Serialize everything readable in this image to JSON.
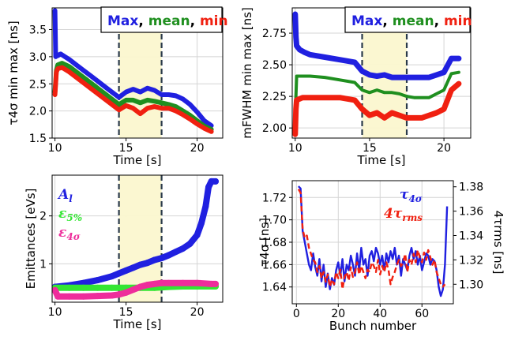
{
  "chart_data": [
    {
      "type": "line",
      "title": "",
      "xlabel": "Time [s]",
      "ylabel": "τ4σ min max [ns]",
      "xlim": [
        9.8,
        21.8
      ],
      "ylim": [
        1.5,
        3.9
      ],
      "xticks": [
        10,
        15,
        20
      ],
      "yticks": [
        1.5,
        2.0,
        2.5,
        3.0,
        3.5
      ],
      "ytick_labels": [
        "1.5",
        "2.0",
        "2.5",
        "3.0",
        "3.5"
      ],
      "grid": true,
      "legend_position": "top-right",
      "legend": [
        {
          "text": "Max",
          "color": "#2020e0"
        },
        {
          "text": ", ",
          "color": "#000000"
        },
        {
          "text": "mean",
          "color": "#1f8f1f"
        },
        {
          "text": ", ",
          "color": "#000000"
        },
        {
          "text": "min",
          "color": "#f02010"
        }
      ],
      "shaded_region": [
        14.5,
        17.5
      ],
      "series": [
        {
          "name": "Max",
          "color": "#2020e0",
          "x": [
            10.0,
            10.05,
            10.1,
            10.2,
            10.4,
            10.7,
            11.0,
            11.5,
            12.0,
            12.5,
            13.0,
            13.5,
            14.0,
            14.5,
            15.0,
            15.5,
            16.0,
            16.5,
            17.0,
            17.5,
            18.0,
            18.5,
            19.0,
            19.5,
            20.0,
            20.5,
            21.0
          ],
          "y": [
            3.85,
            3.0,
            3.05,
            3.02,
            3.05,
            3.0,
            2.95,
            2.85,
            2.75,
            2.65,
            2.55,
            2.45,
            2.35,
            2.25,
            2.35,
            2.4,
            2.35,
            2.42,
            2.38,
            2.3,
            2.3,
            2.28,
            2.22,
            2.12,
            1.98,
            1.82,
            1.73
          ]
        },
        {
          "name": "mean",
          "color": "#1f8f1f",
          "x": [
            10.0,
            10.1,
            10.2,
            10.5,
            11.0,
            11.5,
            12.0,
            12.5,
            13.0,
            13.5,
            14.0,
            14.5,
            15.0,
            15.5,
            16.0,
            16.5,
            17.0,
            17.5,
            18.0,
            18.5,
            19.0,
            19.5,
            20.0,
            20.5,
            21.0
          ],
          "y": [
            2.35,
            2.75,
            2.85,
            2.88,
            2.82,
            2.72,
            2.62,
            2.52,
            2.42,
            2.32,
            2.22,
            2.12,
            2.2,
            2.2,
            2.15,
            2.2,
            2.18,
            2.15,
            2.12,
            2.08,
            2.0,
            1.92,
            1.82,
            1.72,
            1.66
          ]
        },
        {
          "name": "min",
          "color": "#f02010",
          "x": [
            10.0,
            10.1,
            10.2,
            10.5,
            11.0,
            11.5,
            12.0,
            12.5,
            13.0,
            13.5,
            14.0,
            14.5,
            15.0,
            15.5,
            16.0,
            16.5,
            17.0,
            17.5,
            18.0,
            18.5,
            19.0,
            19.5,
            20.0,
            20.5,
            21.0
          ],
          "y": [
            2.3,
            2.72,
            2.78,
            2.8,
            2.72,
            2.62,
            2.52,
            2.42,
            2.32,
            2.22,
            2.12,
            2.02,
            2.1,
            2.05,
            1.95,
            2.05,
            2.08,
            2.05,
            2.05,
            2.0,
            1.93,
            1.85,
            1.76,
            1.68,
            1.62
          ]
        }
      ]
    },
    {
      "type": "line",
      "title": "",
      "xlabel": "Time [s]",
      "ylabel": "mFWHM min max [ns]",
      "xlim": [
        9.8,
        21.8
      ],
      "ylim": [
        1.92,
        2.95
      ],
      "xticks": [
        10,
        15,
        20
      ],
      "yticks": [
        2.0,
        2.25,
        2.5,
        2.75
      ],
      "ytick_labels": [
        "2.00",
        "2.25",
        "2.50",
        "2.75"
      ],
      "grid": true,
      "legend_position": "top-right",
      "legend": [
        {
          "text": "Max",
          "color": "#2020e0"
        },
        {
          "text": ", ",
          "color": "#000000"
        },
        {
          "text": "mean",
          "color": "#1f8f1f"
        },
        {
          "text": ", ",
          "color": "#000000"
        },
        {
          "text": "min",
          "color": "#f02010"
        }
      ],
      "shaded_region": [
        14.5,
        17.5
      ],
      "series": [
        {
          "name": "Max",
          "color": "#2020e0",
          "x": [
            10.0,
            10.05,
            10.1,
            10.3,
            10.6,
            11.0,
            12.0,
            13.0,
            14.0,
            14.5,
            15.0,
            15.5,
            16.0,
            16.5,
            17.0,
            17.5,
            18.0,
            18.5,
            19.0,
            19.5,
            20.0,
            20.5,
            21.0
          ],
          "y": [
            2.9,
            2.72,
            2.65,
            2.62,
            2.6,
            2.58,
            2.56,
            2.54,
            2.52,
            2.45,
            2.42,
            2.41,
            2.42,
            2.4,
            2.4,
            2.4,
            2.4,
            2.4,
            2.4,
            2.42,
            2.44,
            2.55,
            2.55
          ]
        },
        {
          "name": "mean",
          "color": "#1f8f1f",
          "x": [
            10.0,
            10.1,
            10.5,
            11.0,
            12.0,
            13.0,
            14.0,
            14.5,
            15.0,
            15.5,
            16.0,
            16.5,
            17.0,
            17.5,
            18.0,
            18.5,
            19.0,
            19.5,
            20.0,
            20.5,
            21.0
          ],
          "y": [
            2.1,
            2.41,
            2.41,
            2.41,
            2.4,
            2.38,
            2.36,
            2.3,
            2.28,
            2.3,
            2.28,
            2.28,
            2.27,
            2.25,
            2.24,
            2.24,
            2.24,
            2.27,
            2.3,
            2.43,
            2.44
          ]
        },
        {
          "name": "min",
          "color": "#f02010",
          "x": [
            10.0,
            10.05,
            10.1,
            10.5,
            11.0,
            12.0,
            13.0,
            14.0,
            14.5,
            15.0,
            15.5,
            16.0,
            16.5,
            17.0,
            17.5,
            18.0,
            18.5,
            19.0,
            19.5,
            20.0,
            20.5,
            21.0
          ],
          "y": [
            1.95,
            2.15,
            2.22,
            2.24,
            2.24,
            2.24,
            2.24,
            2.22,
            2.15,
            2.1,
            2.12,
            2.08,
            2.12,
            2.1,
            2.08,
            2.08,
            2.08,
            2.1,
            2.12,
            2.15,
            2.3,
            2.35
          ]
        }
      ]
    },
    {
      "type": "scatter",
      "title": "",
      "xlabel": "Time [s]",
      "ylabel": "Emittances [eVs]",
      "xlim": [
        9.8,
        21.8
      ],
      "ylim": [
        0.2,
        2.85
      ],
      "xticks": [
        10,
        15,
        20
      ],
      "yticks": [
        1,
        2
      ],
      "ytick_labels": [
        "1",
        "2"
      ],
      "grid": true,
      "legend_position": "top-left",
      "legend": [
        {
          "text": "A",
          "sub": "l",
          "color": "#2020e0"
        },
        {
          "text": "ε",
          "sub": "5%",
          "color": "#33e633"
        },
        {
          "text": "ε",
          "sub": "4σ",
          "color": "#ee2d9b"
        }
      ],
      "shaded_region": [
        14.5,
        17.5
      ],
      "series": [
        {
          "name": "A_l",
          "color": "#2020e0",
          "x": [
            10.0,
            11.0,
            12.0,
            13.0,
            14.0,
            14.5,
            15.0,
            15.5,
            16.0,
            16.5,
            17.0,
            17.5,
            18.0,
            18.5,
            19.0,
            19.5,
            20.0,
            20.3,
            20.6,
            20.8,
            21.0,
            21.3
          ],
          "y": [
            0.52,
            0.55,
            0.6,
            0.66,
            0.74,
            0.8,
            0.86,
            0.92,
            0.98,
            1.02,
            1.08,
            1.12,
            1.18,
            1.25,
            1.32,
            1.42,
            1.6,
            1.85,
            2.2,
            2.6,
            2.72,
            2.72
          ]
        },
        {
          "name": "ε_5%",
          "color": "#33e633",
          "x": [
            10.0,
            11.0,
            12.0,
            13.0,
            14.0,
            15.0,
            16.0,
            17.0,
            18.0,
            19.0,
            20.0,
            21.0,
            21.3
          ],
          "y": [
            0.5,
            0.5,
            0.5,
            0.5,
            0.5,
            0.5,
            0.5,
            0.5,
            0.52,
            0.53,
            0.53,
            0.53,
            0.53
          ]
        },
        {
          "name": "ε_4σ",
          "color": "#ee2d9b",
          "x": [
            10.0,
            10.2,
            11.0,
            12.0,
            13.0,
            14.0,
            14.5,
            15.0,
            15.5,
            16.0,
            16.5,
            17.0,
            17.5,
            18.0,
            19.0,
            20.0,
            21.0,
            21.3
          ],
          "y": [
            0.45,
            0.32,
            0.32,
            0.32,
            0.33,
            0.34,
            0.36,
            0.4,
            0.46,
            0.52,
            0.56,
            0.58,
            0.6,
            0.6,
            0.6,
            0.6,
            0.58,
            0.58
          ]
        }
      ]
    },
    {
      "type": "line",
      "title": "",
      "xlabel": "Bunch number",
      "ylabel": "τ4σ [ns]",
      "y2label": "4τrms [ns]",
      "xlim": [
        -2,
        75
      ],
      "ylim": [
        1.625,
        1.735
      ],
      "y2lim": [
        1.284,
        1.385
      ],
      "xticks": [
        0,
        20,
        40,
        60
      ],
      "yticks": [
        1.64,
        1.66,
        1.68,
        1.7,
        1.72
      ],
      "ytick_labels": [
        "1.64",
        "1.66",
        "1.68",
        "1.70",
        "1.72"
      ],
      "y2ticks": [
        1.3,
        1.32,
        1.34,
        1.36,
        1.38
      ],
      "y2tick_labels": [
        "1.30",
        "1.32",
        "1.34",
        "1.36",
        "1.38"
      ],
      "grid": true,
      "legend_position": "top-right",
      "legend": [
        {
          "text": "τ",
          "sub": "4σ",
          "color": "#2020e0"
        },
        {
          "text": "4τ",
          "sub": "rms",
          "color": "#f02010"
        }
      ],
      "series": [
        {
          "name": "τ4σ",
          "color": "#2020e0",
          "axis": "left",
          "x": [
            1,
            2,
            3,
            4,
            5,
            6,
            7,
            8,
            9,
            10,
            11,
            12,
            13,
            14,
            15,
            16,
            17,
            18,
            19,
            20,
            21,
            22,
            23,
            24,
            25,
            26,
            27,
            28,
            29,
            30,
            31,
            32,
            33,
            34,
            35,
            36,
            37,
            38,
            39,
            40,
            41,
            42,
            43,
            44,
            45,
            46,
            47,
            48,
            49,
            50,
            51,
            52,
            53,
            54,
            55,
            56,
            57,
            58,
            59,
            60,
            61,
            62,
            63,
            64,
            65,
            66,
            67,
            68,
            69,
            70,
            71,
            72
          ],
          "y": [
            1.73,
            1.728,
            1.69,
            1.68,
            1.67,
            1.66,
            1.655,
            1.67,
            1.658,
            1.65,
            1.665,
            1.645,
            1.66,
            1.64,
            1.652,
            1.638,
            1.648,
            1.642,
            1.655,
            1.662,
            1.65,
            1.665,
            1.645,
            1.66,
            1.655,
            1.668,
            1.66,
            1.65,
            1.67,
            1.655,
            1.675,
            1.66,
            1.665,
            1.65,
            1.668,
            1.672,
            1.663,
            1.675,
            1.67,
            1.66,
            1.668,
            1.655,
            1.67,
            1.662,
            1.672,
            1.665,
            1.675,
            1.66,
            1.668,
            1.65,
            1.665,
            1.66,
            1.655,
            1.668,
            1.675,
            1.665,
            1.672,
            1.66,
            1.668,
            1.655,
            1.662,
            1.67,
            1.668,
            1.66,
            1.665,
            1.663,
            1.655,
            1.64,
            1.632,
            1.638,
            1.66,
            1.712
          ]
        },
        {
          "name": "4τrms",
          "color": "#f02010",
          "axis": "right",
          "x": [
            1,
            2,
            3,
            4,
            5,
            6,
            7,
            8,
            9,
            10,
            11,
            12,
            13,
            14,
            15,
            16,
            17,
            18,
            19,
            20,
            21,
            22,
            23,
            24,
            25,
            26,
            27,
            28,
            29,
            30,
            31,
            32,
            33,
            34,
            35,
            36,
            37,
            38,
            39,
            40,
            41,
            42,
            43,
            44,
            45,
            46,
            47,
            48,
            49,
            50,
            51,
            52,
            53,
            54,
            55,
            56,
            57,
            58,
            59,
            60,
            61,
            62,
            63,
            64,
            65,
            66,
            67,
            68,
            69,
            70,
            71
          ],
          "y": [
            1.378,
            1.375,
            1.345,
            1.338,
            1.34,
            1.33,
            1.325,
            1.32,
            1.318,
            1.31,
            1.315,
            1.305,
            1.31,
            1.302,
            1.308,
            1.298,
            1.304,
            1.3,
            1.31,
            1.305,
            1.312,
            1.296,
            1.306,
            1.31,
            1.303,
            1.314,
            1.306,
            1.31,
            1.318,
            1.308,
            1.315,
            1.31,
            1.305,
            1.312,
            1.31,
            1.318,
            1.315,
            1.31,
            1.32,
            1.308,
            1.315,
            1.31,
            1.318,
            1.312,
            1.3,
            1.306,
            1.31,
            1.316,
            1.32,
            1.315,
            1.318,
            1.325,
            1.31,
            1.32,
            1.316,
            1.325,
            1.318,
            1.328,
            1.322,
            1.318,
            1.326,
            1.32,
            1.328,
            1.322,
            1.316,
            1.32,
            1.31,
            1.305,
            1.3,
            1.298,
            1.3
          ]
        }
      ]
    }
  ]
}
